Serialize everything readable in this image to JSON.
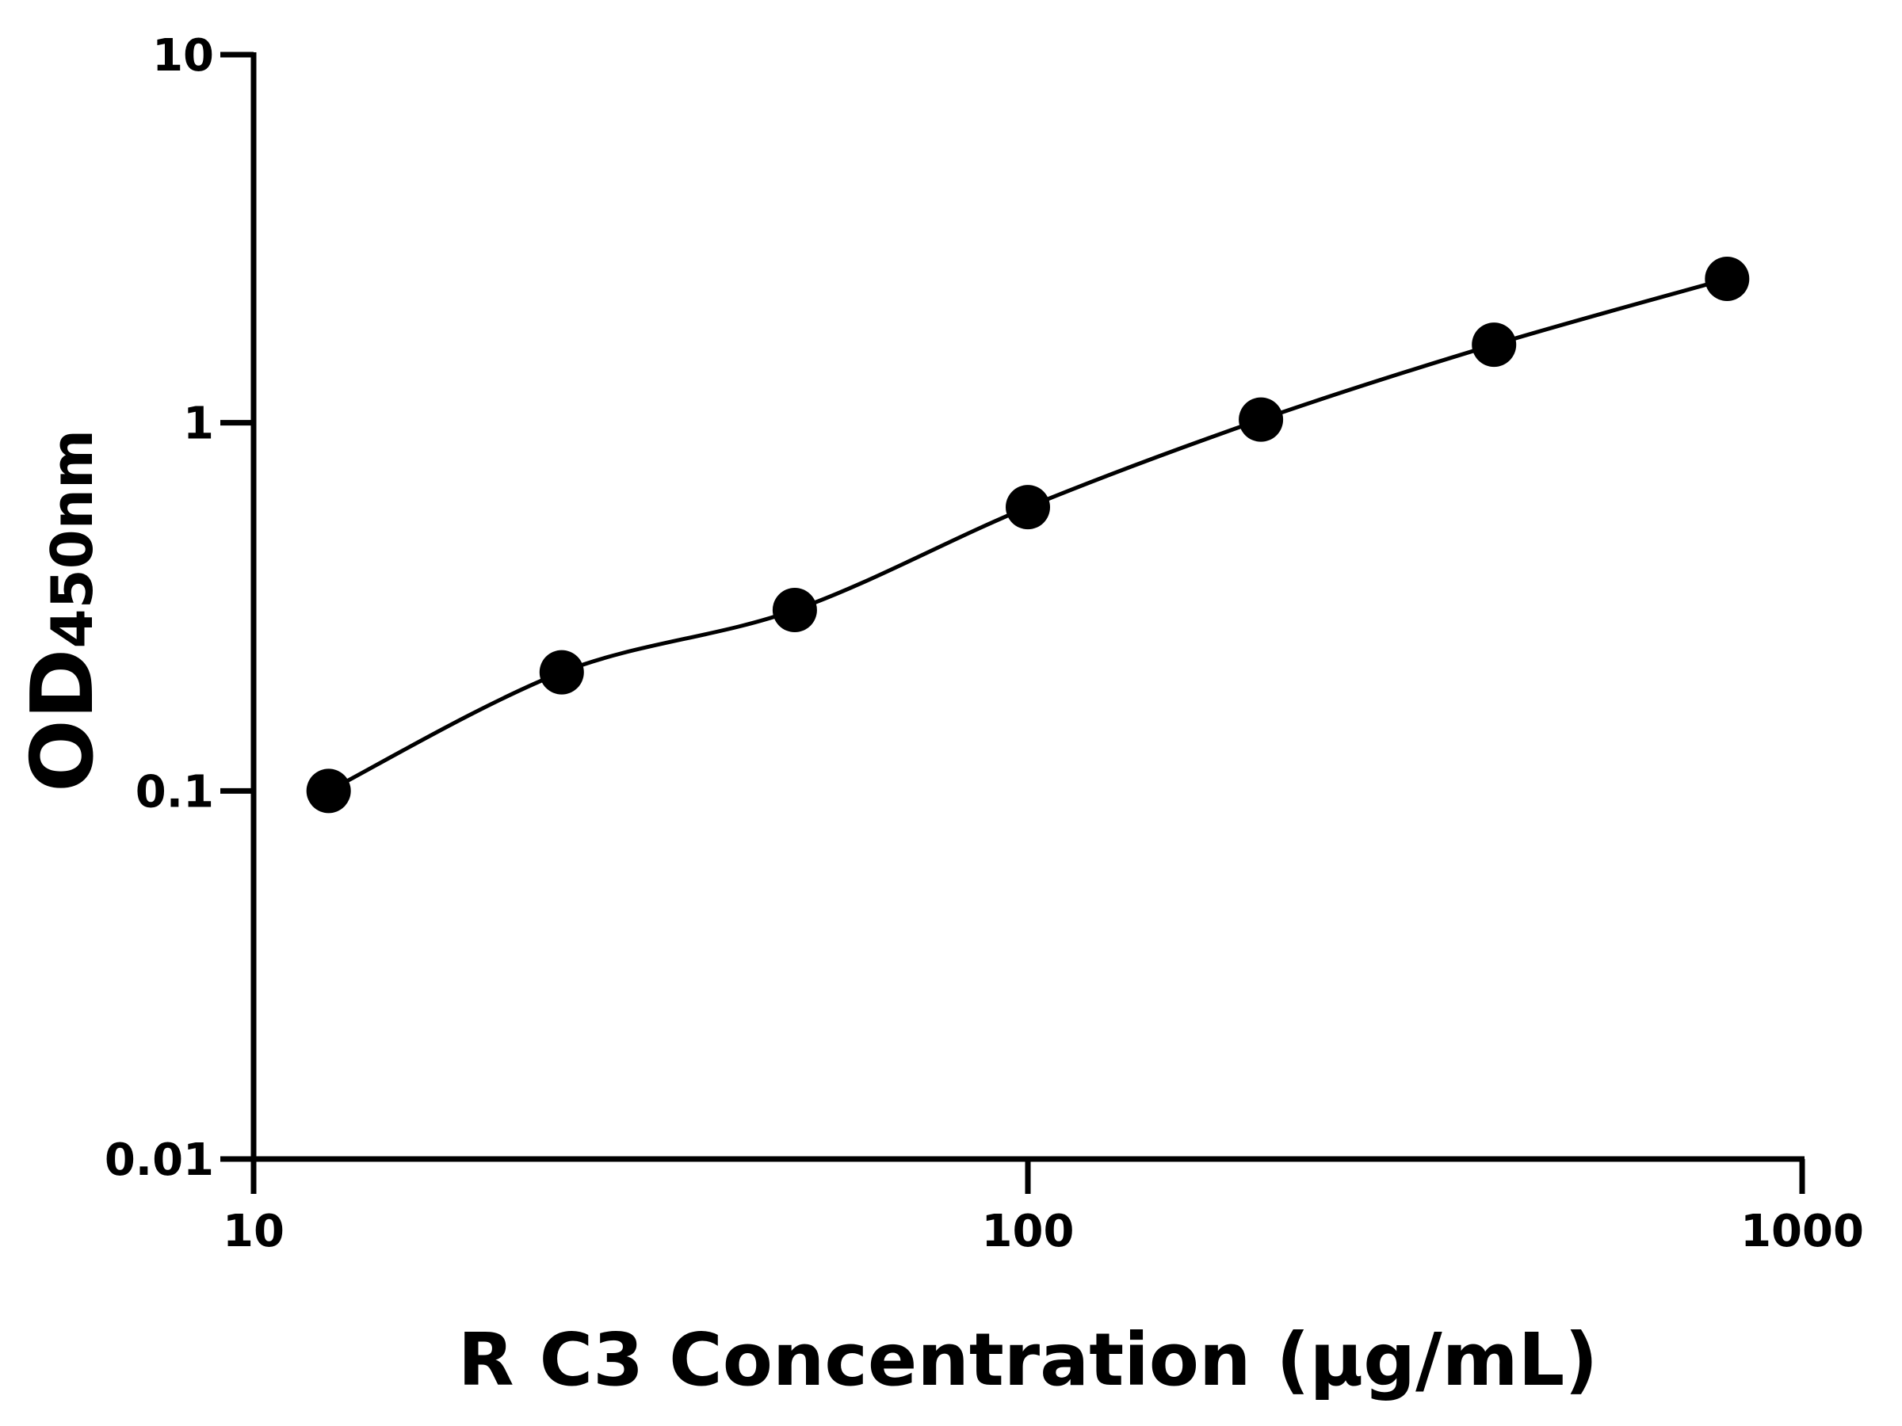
{
  "chart_data": {
    "type": "scatter",
    "title": "",
    "xlabel": "R C3 Concentration (μg/mL)",
    "ylabel_main": "OD",
    "ylabel_sub": "450nm",
    "x_scale": "log",
    "y_scale": "log",
    "xlim": [
      10,
      1000
    ],
    "ylim": [
      0.01,
      10
    ],
    "x_ticks": [
      "10",
      "100",
      "1000"
    ],
    "x_tick_values": [
      10,
      100,
      1000
    ],
    "y_ticks": [
      "0.01",
      "0.1",
      "1",
      "10"
    ],
    "y_tick_values": [
      0.01,
      0.1,
      1,
      10
    ],
    "grid": false,
    "legend": "none",
    "series": [
      {
        "x": [
          12.5,
          25,
          50,
          100,
          200,
          400,
          800
        ],
        "y": [
          0.1,
          0.21,
          0.31,
          0.59,
          1.02,
          1.63,
          2.46
        ],
        "marker": "circle",
        "line": "fitted-curve",
        "color": "#000000"
      }
    ]
  }
}
